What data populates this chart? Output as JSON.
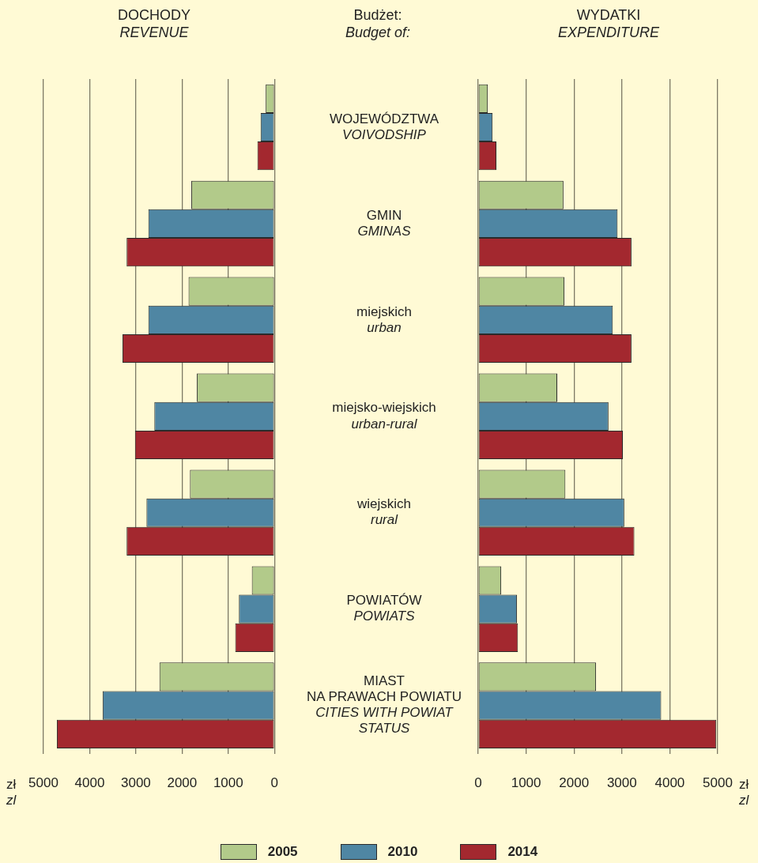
{
  "chart_data": [
    {
      "type": "bar",
      "orientation": "horizontal",
      "title": "DOCHODY",
      "subtitle": "REVENUE",
      "xlabel": "zł\nzl",
      "categories": [
        null,
        null,
        null,
        null,
        null,
        null,
        null
      ],
      "series": [
        {
          "name": "2005",
          "color": "#b2ca8a",
          "values": [
            190,
            1800,
            1860,
            1680,
            1830,
            490,
            2490
          ]
        },
        {
          "name": "2010",
          "color": "#4f86a3",
          "values": [
            300,
            2730,
            2730,
            2600,
            2770,
            770,
            3720
          ]
        },
        {
          "name": "2014",
          "color": "#a3282f",
          "values": [
            370,
            3200,
            3290,
            3020,
            3200,
            850,
            4710
          ]
        }
      ],
      "xlim": [
        5000,
        0
      ],
      "xticks": [
        5000,
        4000,
        3000,
        2000,
        1000,
        0
      ],
      "grid": "x",
      "tick_labels": "x",
      "legend": "bottom"
    },
    {
      "type": "bar",
      "orientation": "horizontal",
      "title": "WYDATKI",
      "subtitle": "EXPENDITURE",
      "ylabel": "Budżet:\nBudget of:",
      "xlabel": "zł\nzl",
      "categories": [
        "WOJEWÓDZTWA\nVOIVODSHIP",
        "GMIN\nGMINAS",
        "miejskich\nurban",
        "miejsko-wiejskich\nurban-rural",
        "wiejskich\nrural",
        "POWIATÓW\nPOWIATS",
        "MIAST\nNA PRAWACH POWIATU\nCITIES WITH POWIAT\nSTATUS"
      ],
      "series": [
        {
          "name": "2005",
          "color": "#b2ca8a",
          "values": [
            200,
            1780,
            1800,
            1650,
            1820,
            480,
            2460
          ]
        },
        {
          "name": "2010",
          "color": "#4f86a3",
          "values": [
            300,
            2910,
            2810,
            2720,
            3050,
            810,
            3820
          ]
        },
        {
          "name": "2014",
          "color": "#a3282f",
          "values": [
            380,
            3200,
            3200,
            3020,
            3260,
            830,
            4970
          ]
        }
      ],
      "xlim": [
        0,
        5000
      ],
      "xticks": [
        0,
        1000,
        2000,
        3000,
        4000,
        5000
      ],
      "grid": "x"
    }
  ]
}
